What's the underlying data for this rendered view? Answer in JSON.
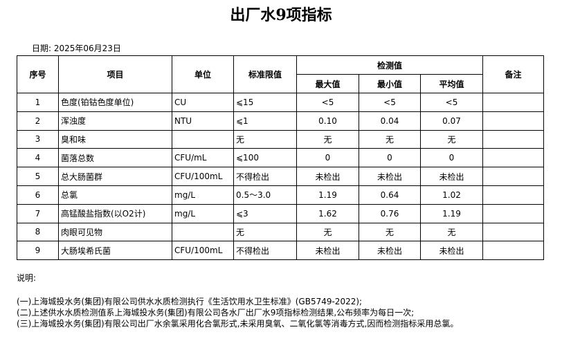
{
  "header": {
    "title": "出厂水9项指标",
    "date": "日期: 2025年06月23日"
  },
  "table": {
    "columns": [
      "序号",
      "项目",
      "单位",
      "标准限值",
      "检测值",
      "备注"
    ],
    "subcolumns": [
      "最大值",
      "最小值",
      "平均值"
    ],
    "rows": [
      [
        "1",
        "色度(铂钴色度单位)",
        "CU",
        "⩽15",
        "<5",
        "<5",
        "<5"
      ],
      [
        "2",
        "浑浊度",
        "NTU",
        "⩽1",
        "0.10",
        "0.04",
        "0.07"
      ],
      [
        "3",
        "臭和味",
        null,
        "无",
        "无",
        "无",
        "无"
      ],
      [
        "4",
        "菌落总数",
        "CFU/mL",
        "⩽100",
        "0",
        "0",
        "0"
      ],
      [
        "5",
        "总大肠菌群",
        "CFU/100mL",
        "不得检出",
        "未检出",
        "未检出",
        "未检出"
      ],
      [
        "6",
        "总氯",
        "mg/L",
        "0.5～3.0",
        "1.19",
        "0.64",
        "1.02"
      ],
      [
        "7",
        "高锰酸盐指数(以O2计)",
        "mg/L",
        "⩽3",
        "1.62",
        "0.76",
        "1.19"
      ],
      [
        "8",
        "肉眼可见物",
        null,
        "无",
        "无",
        "无",
        "无"
      ],
      [
        "9",
        "大肠埃希氏菌",
        "CFU/100mL",
        "不得检出",
        "未检出",
        "未检出",
        "未检出"
      ]
    ]
  },
  "notes": {
    "heading": "说明:",
    "items": [
      "(一)上海城投水务(集团)有限公司供水水质检测执行《生活饮用水卫生标准》(GB5749-2022);",
      "(二)上述供水水质检测值系上海城投水务(集团)有限公司各水厂出厂水9项指标检测结果,公布频率为每日一次;",
      "(三)上海城投水务(集团)有限公司出厂水余氯采用化合氯形式,未采用臭氧、二氧化氯等消毒方式,因而检测指标采用总氯。"
    ]
  }
}
